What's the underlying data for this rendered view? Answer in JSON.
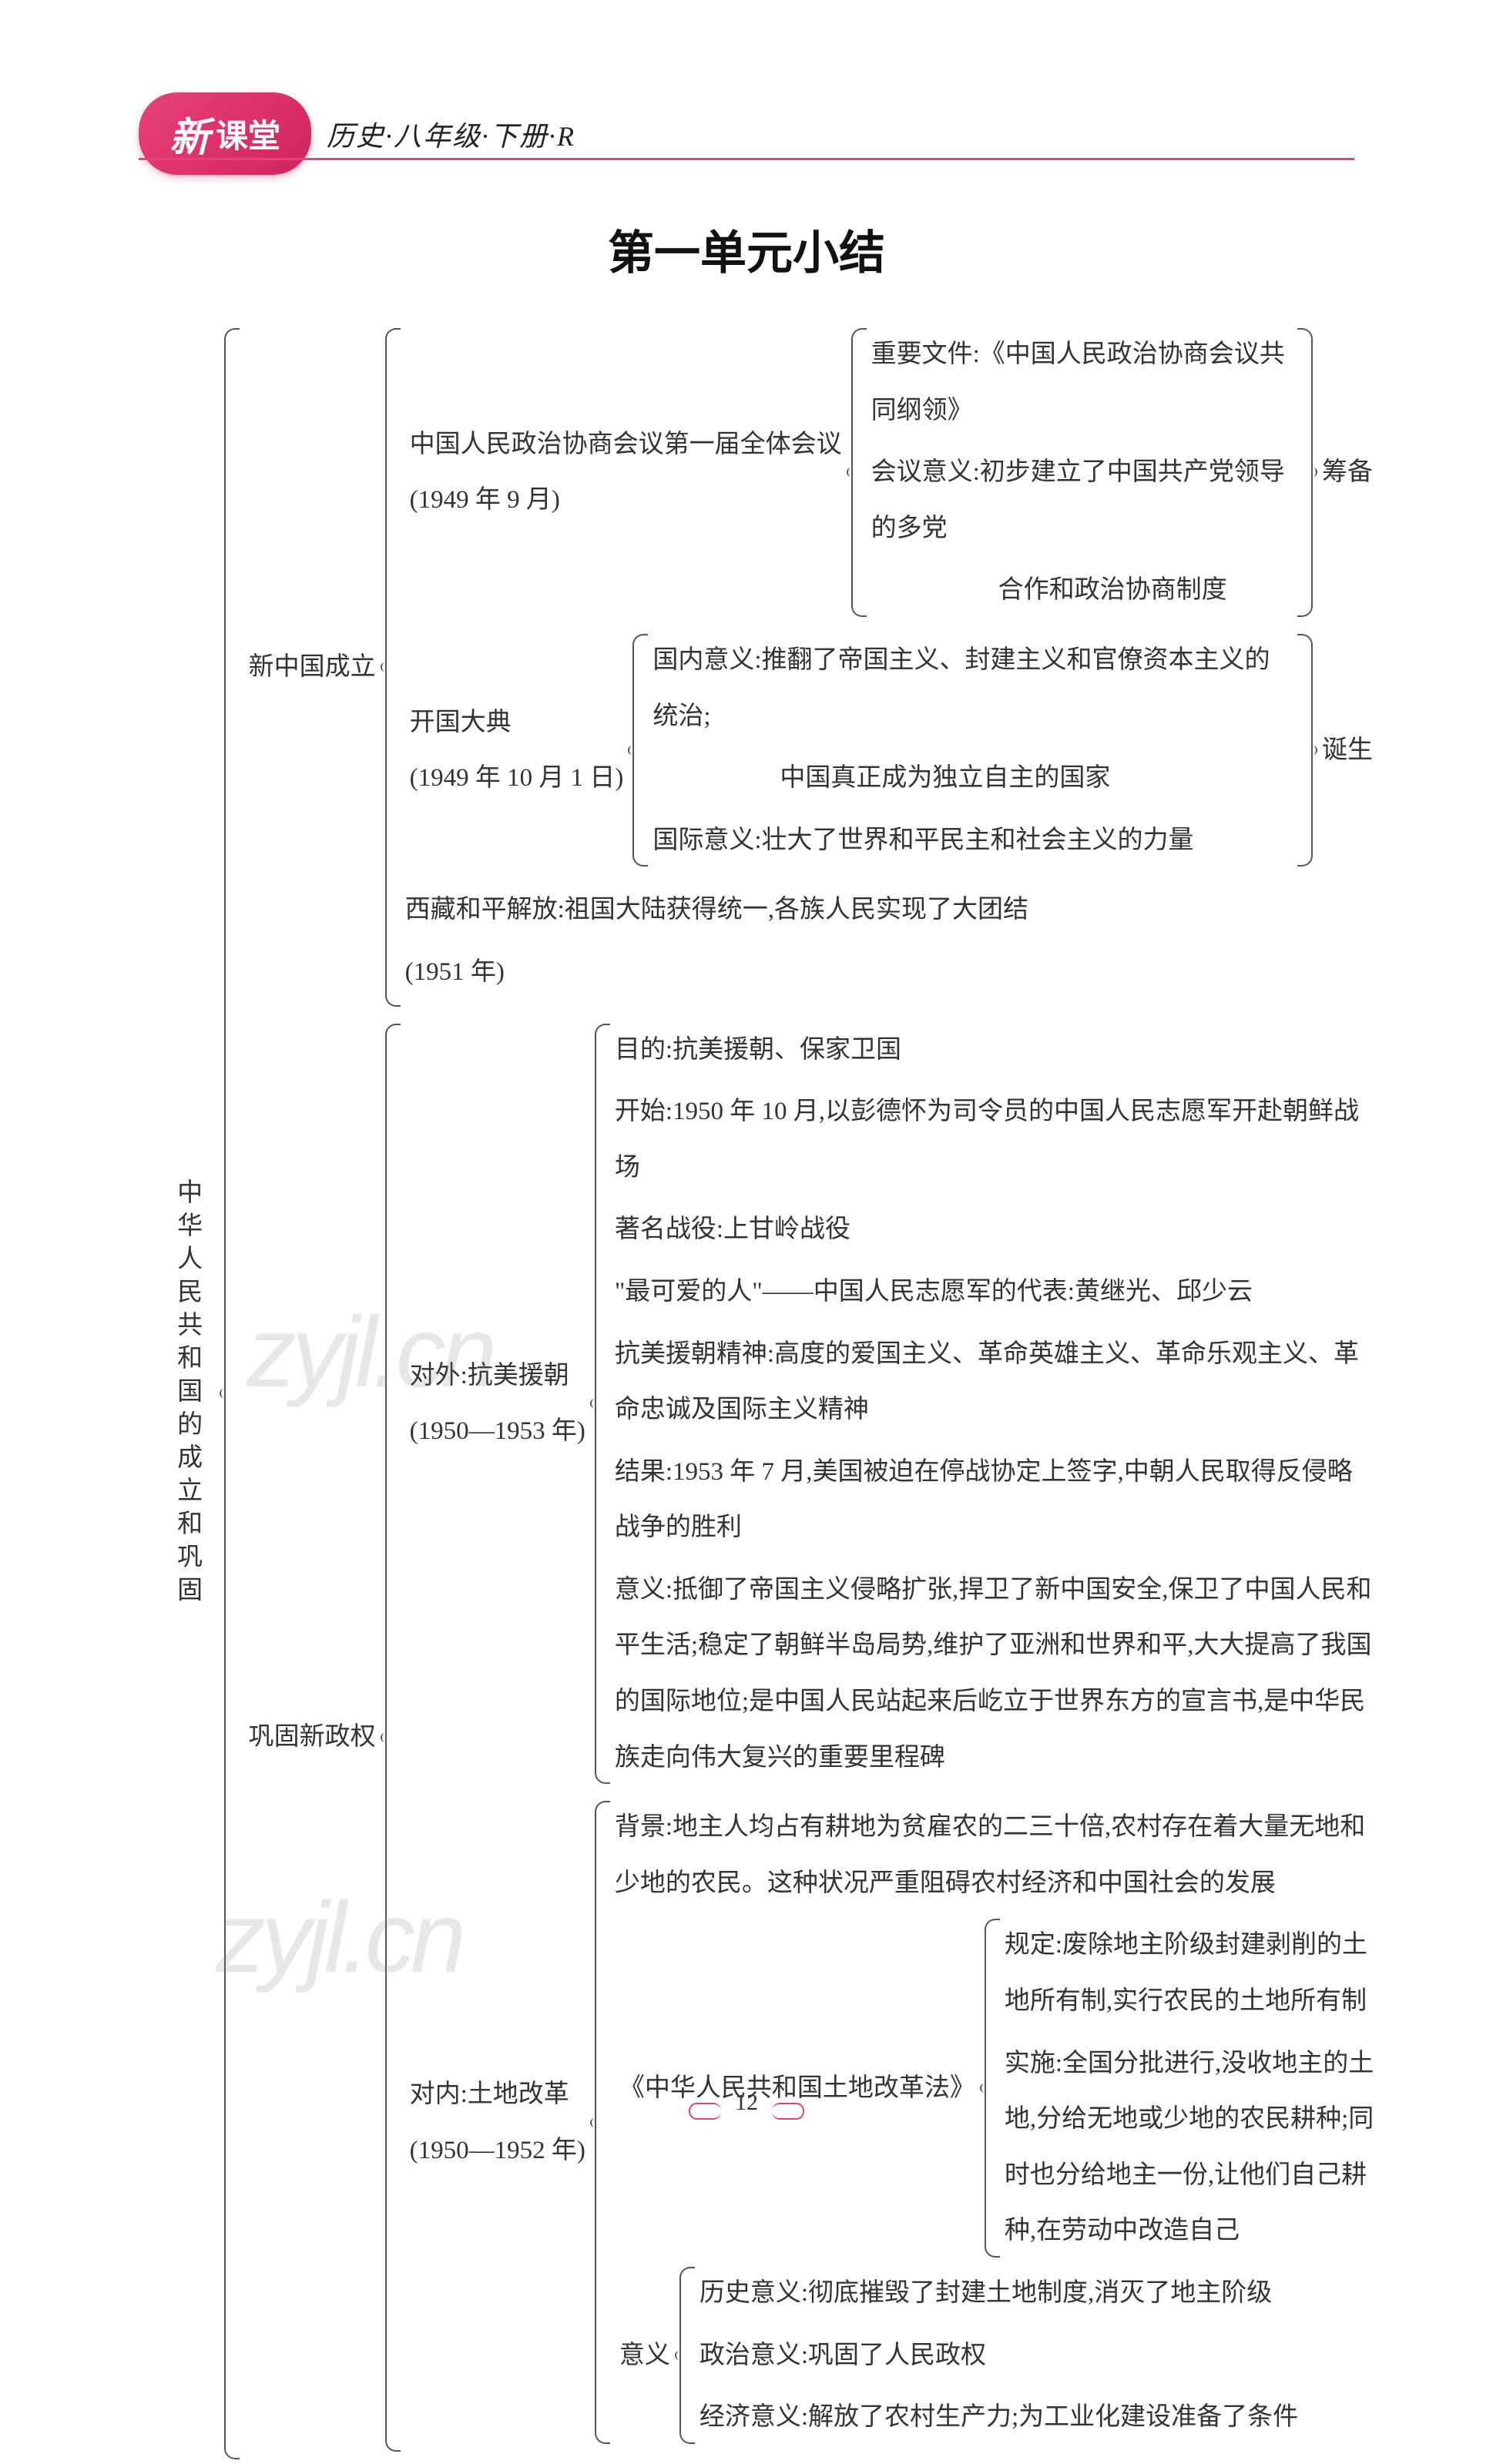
{
  "header": {
    "badge_char": "新",
    "badge_text": "课堂",
    "subtitle": "历史·八年级·下册·R"
  },
  "title": "第一单元小结",
  "page_number": "12",
  "watermark": "zyjl.cn",
  "colors": {
    "accent": "#e8407a",
    "text": "#333333",
    "bracket": "#555555",
    "background": "#ffffff"
  },
  "typography": {
    "body_fontsize_pt": 16,
    "title_fontsize_pt": 30,
    "line_height": 2.2
  },
  "tree": {
    "root_label": "中华人民共和国的成立和巩固",
    "sections": [
      {
        "label": "新中国成立",
        "items": [
          {
            "head": "中国人民政治协商会议第一届全体会议",
            "head2": "(1949 年 9 月)",
            "sub": [
              "重要文件:《中国人民政治协商会议共同纲领》",
              "会议意义:初步建立了中国共产党领导的多党",
              "合作和政治协商制度"
            ],
            "right_label": "筹备"
          },
          {
            "head": "开国大典",
            "head2": "(1949 年 10 月 1 日)",
            "sub": [
              "国内意义:推翻了帝国主义、封建主义和官僚资本主义的统治;",
              "中国真正成为独立自主的国家",
              "国际意义:壮大了世界和平民主和社会主义的力量"
            ],
            "right_label": "诞生"
          },
          {
            "head": "西藏和平解放:祖国大陆获得统一,各族人民实现了大团结",
            "head2": "(1951 年)"
          }
        ]
      },
      {
        "label": "巩固新政权",
        "items": [
          {
            "head": "对外:抗美援朝",
            "head2": "(1950—1953 年)",
            "sub": [
              "目的:抗美援朝、保家卫国",
              "开始:1950 年 10 月,以彭德怀为司令员的中国人民志愿军开赴朝鲜战场",
              "著名战役:上甘岭战役",
              "\"最可爱的人\"——中国人民志愿军的代表:黄继光、邱少云",
              "抗美援朝精神:高度的爱国主义、革命英雄主义、革命乐观主义、革命忠诚及国际主义精神",
              "结果:1953 年 7 月,美国被迫在停战协定上签字,中朝人民取得反侵略战争的胜利",
              "意义:抵御了帝国主义侵略扩张,捍卫了新中国安全,保卫了中国人民和平生活;稳定了朝鲜半岛局势,维护了亚洲和世界和平,大大提高了我国的国际地位;是中国人民站起来后屹立于世界东方的宣言书,是中华民族走向伟大复兴的重要里程碑"
            ]
          },
          {
            "head": "对内:土地改革",
            "head2": "(1950—1952 年)",
            "bg": [
              "背景:地主人均占有耕地为贫雇农的二三十倍,农村存在着大量无地和少地的农民。这种状况严重阻碍农村经济和中国社会的发展"
            ],
            "law_label": "《中华人民共和国土地改革法》",
            "law": [
              "规定:废除地主阶级封建剥削的土地所有制,实行农民的土地所有制",
              "实施:全国分批进行,没收地主的土地,分给无地或少地的农民耕种;同时也分给地主一份,让他们自己耕种,在劳动中改造自己"
            ],
            "sig_label": "意义",
            "sig": [
              "历史意义:彻底摧毁了封建土地制度,消灭了地主阶级",
              "政治意义:巩固了人民政权",
              "经济意义:解放了农村生产力;为工业化建设准备了条件"
            ]
          }
        ]
      }
    ]
  }
}
